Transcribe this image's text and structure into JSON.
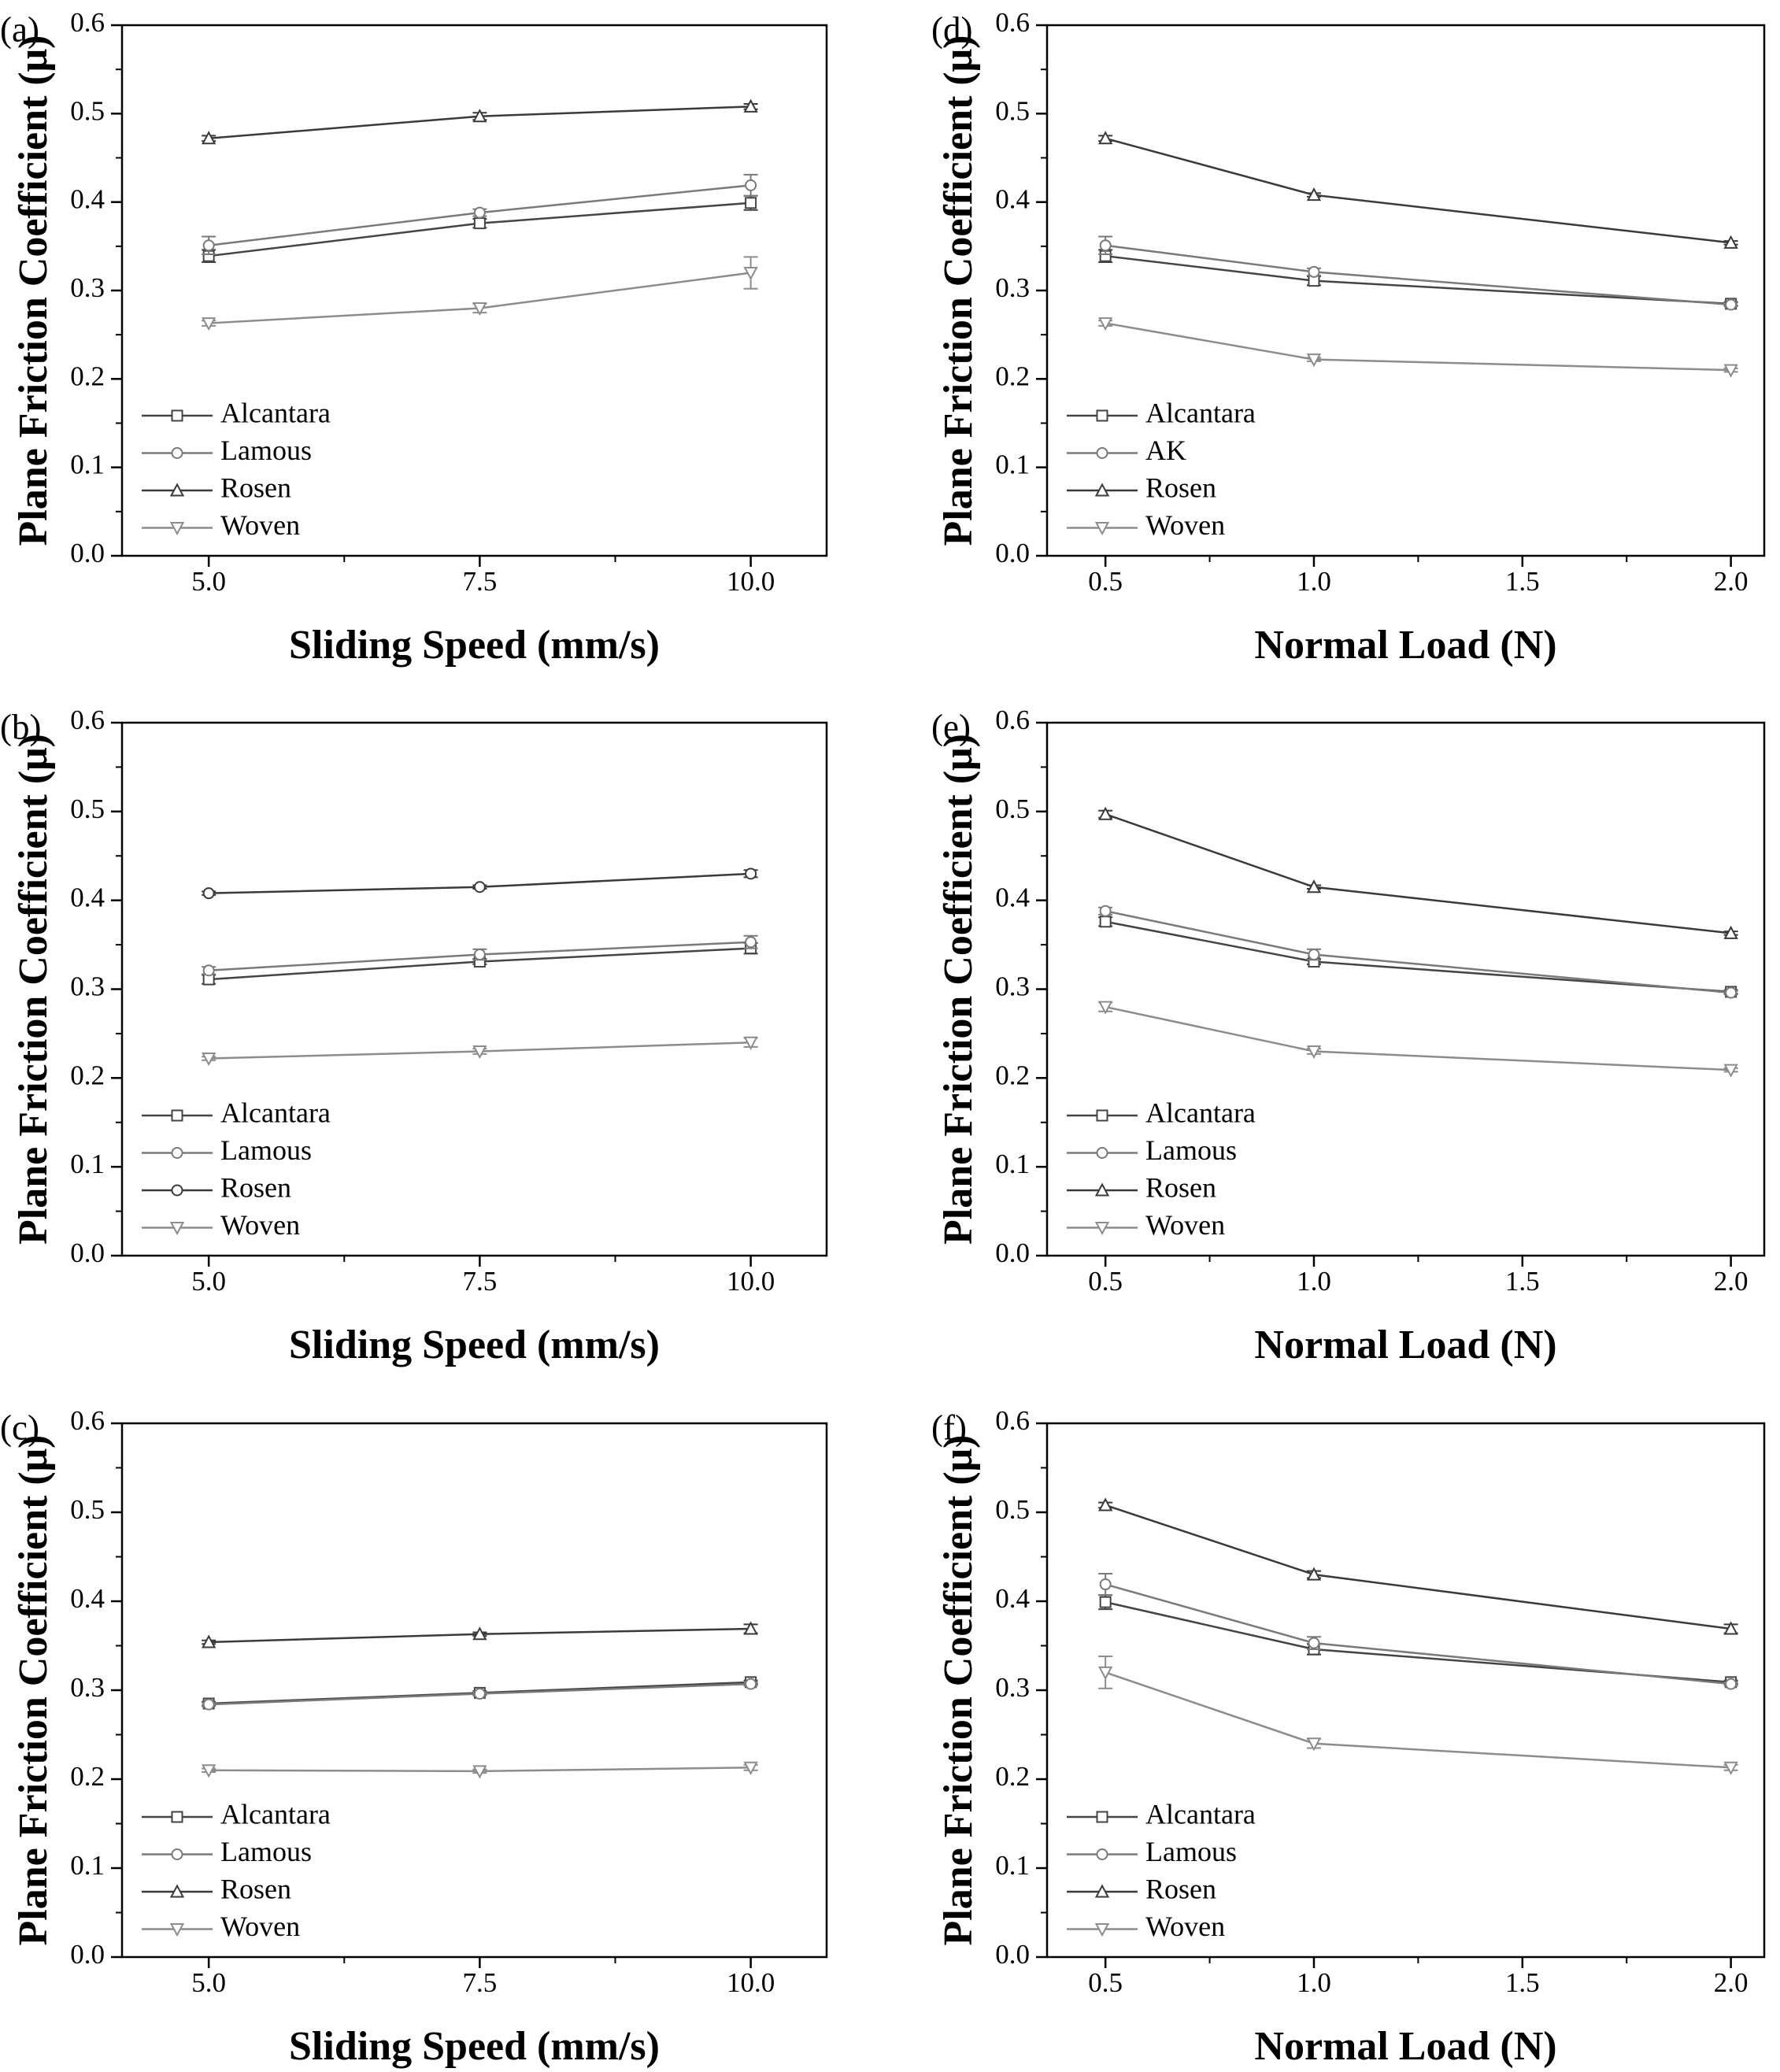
{
  "figure": {
    "panels": [
      {
        "label": "(a)",
        "chart_data": {
          "type": "line",
          "x": [
            5.0,
            7.5,
            10.0
          ],
          "xticks": [
            "5.0",
            "7.5",
            "10.0"
          ],
          "xlim": [
            4.2,
            10.7
          ],
          "ylim": [
            0.0,
            0.6
          ],
          "yticks": [
            "0.0",
            "0.1",
            "0.2",
            "0.3",
            "0.4",
            "0.5",
            "0.6"
          ],
          "xlabel": "Sliding Speed (mm/s)",
          "ylabel": "Plane Friction Coefficient (μ)",
          "legend": "bottom-left",
          "series": [
            {
              "name": "Alcantara",
              "marker": "square",
              "color": "#444444",
              "values": [
                0.339,
                0.376,
                0.399
              ],
              "err": [
                0.007,
                0.005,
                0.008
              ]
            },
            {
              "name": "Lamous",
              "marker": "circle",
              "color": "#7a7a7a",
              "values": [
                0.351,
                0.388,
                0.419
              ],
              "err": [
                0.01,
                0.004,
                0.012
              ]
            },
            {
              "name": "Rosen",
              "marker": "triangle-up",
              "color": "#3a3a3a",
              "values": [
                0.472,
                0.497,
                0.508
              ],
              "err": [
                0.003,
                0.004,
                0.003
              ]
            },
            {
              "name": "Woven",
              "marker": "triangle-down",
              "color": "#8c8c8c",
              "values": [
                0.263,
                0.28,
                0.32
              ],
              "err": [
                0.003,
                0.005,
                0.018
              ]
            }
          ]
        }
      },
      {
        "label": "(b)",
        "chart_data": {
          "type": "line",
          "x": [
            5.0,
            7.5,
            10.0
          ],
          "xticks": [
            "5.0",
            "7.5",
            "10.0"
          ],
          "xlim": [
            4.2,
            10.7
          ],
          "ylim": [
            0.0,
            0.6
          ],
          "yticks": [
            "0.0",
            "0.1",
            "0.2",
            "0.3",
            "0.4",
            "0.5",
            "0.6"
          ],
          "xlabel": "Sliding Speed (mm/s)",
          "ylabel": "Plane Friction Coefficient (μ)",
          "legend": "bottom-left",
          "series": [
            {
              "name": "Alcantara",
              "marker": "square",
              "color": "#444444",
              "values": [
                0.311,
                0.331,
                0.346
              ],
              "err": [
                0.005,
                0.003,
                0.006
              ]
            },
            {
              "name": "Lamous",
              "marker": "circle",
              "color": "#7a7a7a",
              "values": [
                0.321,
                0.339,
                0.353
              ],
              "err": [
                0.004,
                0.006,
                0.007
              ]
            },
            {
              "name": "Rosen",
              "marker": "circle",
              "color": "#3a3a3a",
              "values": [
                0.408,
                0.415,
                0.43
              ],
              "err": [
                0.002,
                0.002,
                0.004
              ]
            },
            {
              "name": "Woven",
              "marker": "triangle-down",
              "color": "#8c8c8c",
              "values": [
                0.222,
                0.23,
                0.24
              ],
              "err": [
                0.002,
                0.003,
                0.005
              ]
            }
          ]
        }
      },
      {
        "label": "(c)",
        "chart_data": {
          "type": "line",
          "x": [
            5.0,
            7.5,
            10.0
          ],
          "xticks": [
            "5.0",
            "7.5",
            "10.0"
          ],
          "xlim": [
            4.2,
            10.7
          ],
          "ylim": [
            0.0,
            0.6
          ],
          "yticks": [
            "0.0",
            "0.1",
            "0.2",
            "0.3",
            "0.4",
            "0.5",
            "0.6"
          ],
          "xlabel": "Sliding Speed (mm/s)",
          "ylabel": "Plane Friction Coefficient (μ)",
          "legend": "bottom-left",
          "series": [
            {
              "name": "Alcantara",
              "marker": "square",
              "color": "#444444",
              "values": [
                0.285,
                0.297,
                0.309
              ],
              "err": [
                0.002,
                0.002,
                0.002
              ]
            },
            {
              "name": "Lamous",
              "marker": "circle",
              "color": "#7a7a7a",
              "values": [
                0.284,
                0.296,
                0.307
              ],
              "err": [
                0.002,
                0.002,
                0.002
              ]
            },
            {
              "name": "Rosen",
              "marker": "triangle-up",
              "color": "#3a3a3a",
              "values": [
                0.354,
                0.363,
                0.369
              ],
              "err": [
                0.002,
                0.002,
                0.005
              ]
            },
            {
              "name": "Woven",
              "marker": "triangle-down",
              "color": "#8c8c8c",
              "values": [
                0.21,
                0.209,
                0.213
              ],
              "err": [
                0.002,
                0.002,
                0.003
              ]
            }
          ]
        }
      },
      {
        "label": "(d)",
        "chart_data": {
          "type": "line",
          "x": [
            0.5,
            1.0,
            2.0
          ],
          "xticks": [
            "0.5",
            "1.0",
            "1.5",
            "2.0"
          ],
          "xtick_values": [
            0.5,
            1.0,
            1.5,
            2.0
          ],
          "xlim": [
            0.36,
            2.08
          ],
          "ylim": [
            0.0,
            0.6
          ],
          "yticks": [
            "0.0",
            "0.1",
            "0.2",
            "0.3",
            "0.4",
            "0.5",
            "0.6"
          ],
          "xlabel": "Normal Load (N)",
          "ylabel": "Plane Friction Coefficient (μ)",
          "legend": "bottom-left",
          "series": [
            {
              "name": "Alcantara",
              "marker": "square",
              "color": "#444444",
              "values": [
                0.339,
                0.311,
                0.285
              ],
              "err": [
                0.007,
                0.005,
                0.002
              ]
            },
            {
              "name": "AK",
              "marker": "circle",
              "color": "#7a7a7a",
              "values": [
                0.351,
                0.321,
                0.284
              ],
              "err": [
                0.01,
                0.004,
                0.002
              ]
            },
            {
              "name": "Rosen",
              "marker": "triangle-up",
              "color": "#3a3a3a",
              "values": [
                0.472,
                0.408,
                0.354
              ],
              "err": [
                0.003,
                0.002,
                0.002
              ]
            },
            {
              "name": "Woven",
              "marker": "triangle-down",
              "color": "#8c8c8c",
              "values": [
                0.263,
                0.222,
                0.21
              ],
              "err": [
                0.003,
                0.002,
                0.002
              ]
            }
          ]
        }
      },
      {
        "label": "(e)",
        "chart_data": {
          "type": "line",
          "x": [
            0.5,
            1.0,
            2.0
          ],
          "xticks": [
            "0.5",
            "1.0",
            "1.5",
            "2.0"
          ],
          "xtick_values": [
            0.5,
            1.0,
            1.5,
            2.0
          ],
          "xlim": [
            0.36,
            2.08
          ],
          "ylim": [
            0.0,
            0.6
          ],
          "yticks": [
            "0.0",
            "0.1",
            "0.2",
            "0.3",
            "0.4",
            "0.5",
            "0.6"
          ],
          "xlabel": "Normal Load (N)",
          "ylabel": "Plane Friction Coefficient (μ)",
          "legend": "bottom-left",
          "series": [
            {
              "name": "Alcantara",
              "marker": "square",
              "color": "#444444",
              "values": [
                0.376,
                0.331,
                0.297
              ],
              "err": [
                0.005,
                0.003,
                0.002
              ]
            },
            {
              "name": "Lamous",
              "marker": "circle",
              "color": "#7a7a7a",
              "values": [
                0.388,
                0.339,
                0.296
              ],
              "err": [
                0.004,
                0.006,
                0.002
              ]
            },
            {
              "name": "Rosen",
              "marker": "triangle-up",
              "color": "#3a3a3a",
              "values": [
                0.497,
                0.415,
                0.363
              ],
              "err": [
                0.004,
                0.002,
                0.002
              ]
            },
            {
              "name": "Woven",
              "marker": "triangle-down",
              "color": "#8c8c8c",
              "values": [
                0.28,
                0.23,
                0.209
              ],
              "err": [
                0.005,
                0.003,
                0.002
              ]
            }
          ]
        }
      },
      {
        "label": "(f)",
        "chart_data": {
          "type": "line",
          "x": [
            0.5,
            1.0,
            2.0
          ],
          "xticks": [
            "0.5",
            "1.0",
            "1.5",
            "2.0"
          ],
          "xtick_values": [
            0.5,
            1.0,
            1.5,
            2.0
          ],
          "xlim": [
            0.36,
            2.08
          ],
          "ylim": [
            0.0,
            0.6
          ],
          "yticks": [
            "0.0",
            "0.1",
            "0.2",
            "0.3",
            "0.4",
            "0.5",
            "0.6"
          ],
          "xlabel": "Normal Load (N)",
          "ylabel": "Plane Friction Coefficient (μ)",
          "legend": "bottom-left",
          "series": [
            {
              "name": "Alcantara",
              "marker": "square",
              "color": "#444444",
              "values": [
                0.399,
                0.346,
                0.309
              ],
              "err": [
                0.008,
                0.006,
                0.002
              ]
            },
            {
              "name": "Lamous",
              "marker": "circle",
              "color": "#7a7a7a",
              "values": [
                0.419,
                0.353,
                0.307
              ],
              "err": [
                0.012,
                0.007,
                0.002
              ]
            },
            {
              "name": "Rosen",
              "marker": "triangle-up",
              "color": "#3a3a3a",
              "values": [
                0.508,
                0.43,
                0.369
              ],
              "err": [
                0.003,
                0.004,
                0.005
              ]
            },
            {
              "name": "Woven",
              "marker": "triangle-down",
              "color": "#8c8c8c",
              "values": [
                0.32,
                0.24,
                0.213
              ],
              "err": [
                0.018,
                0.005,
                0.003
              ]
            }
          ]
        }
      }
    ]
  }
}
